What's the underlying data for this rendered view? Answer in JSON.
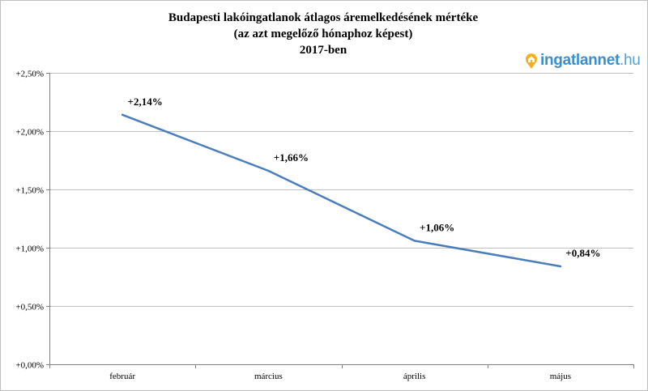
{
  "chart_data": {
    "type": "line",
    "title_lines": [
      "Budapesti lakóingatlanok átlagos áremelkedésének mértéke",
      "(az azt megelőző hónaphoz képest)",
      "2017-ben"
    ],
    "categories": [
      "február",
      "március",
      "április",
      "május"
    ],
    "series": [
      {
        "values": [
          2.14,
          1.66,
          1.06,
          0.84
        ],
        "color": "#4a7ebb"
      }
    ],
    "data_labels": [
      "+2,14%",
      "+1,66%",
      "+1,06%",
      "+0,84%"
    ],
    "y_ticks": [
      0,
      0.5,
      1.0,
      1.5,
      2.0,
      2.5
    ],
    "y_tick_labels": [
      "+0,00%",
      "+0,50%",
      "+1,00%",
      "+1,50%",
      "+2,00%",
      "+2,50%"
    ],
    "ylim": [
      0,
      2.5
    ],
    "grid": true,
    "legend": "none"
  },
  "logo": {
    "name": "ingatlannet",
    "tld": ".hu",
    "icon": "house-pin-icon",
    "color": "#3a8fd1",
    "icon_color": "#f2b01e"
  }
}
